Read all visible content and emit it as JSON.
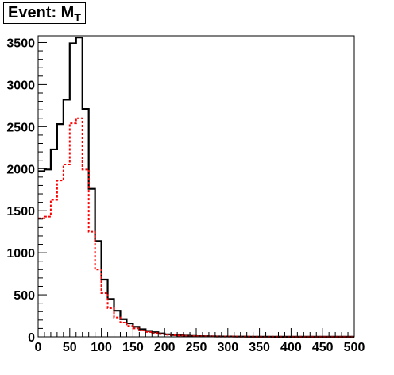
{
  "chart_data": {
    "type": "histogram",
    "title_main": "Event: M",
    "title_sub": "T",
    "xlabel": "",
    "ylabel": "",
    "xlim": [
      0,
      500
    ],
    "ylim": [
      0,
      3580
    ],
    "bin_width": 10,
    "x_ticks": [
      0,
      50,
      100,
      150,
      200,
      250,
      300,
      350,
      400,
      450,
      500
    ],
    "y_ticks": [
      0,
      500,
      1000,
      1500,
      2000,
      2500,
      3000,
      3500
    ],
    "grid": false,
    "legend": "none",
    "series": [
      {
        "style": "solid",
        "color": "#000000",
        "values": [
          1970,
          1990,
          2230,
          2530,
          2820,
          3490,
          3560,
          2710,
          1760,
          1140,
          680,
          450,
          310,
          210,
          160,
          120,
          90,
          70,
          55,
          40,
          30,
          22,
          18,
          14,
          11,
          9,
          7,
          6,
          5,
          4,
          4,
          3,
          3,
          2,
          2,
          2,
          2,
          1,
          1,
          1,
          1,
          1,
          1,
          1,
          1,
          1,
          1,
          1,
          1,
          1
        ]
      },
      {
        "style": "dashed",
        "color": "#ff0000",
        "values": [
          1410,
          1430,
          1630,
          1860,
          2050,
          2540,
          2600,
          1990,
          1250,
          800,
          520,
          340,
          230,
          170,
          130,
          100,
          75,
          58,
          45,
          33,
          25,
          19,
          15,
          12,
          9,
          7,
          6,
          5,
          4,
          3,
          3,
          2,
          2,
          2,
          1,
          1,
          1,
          1,
          1,
          1,
          1,
          1,
          1,
          1,
          1,
          1,
          1,
          1,
          1,
          1
        ]
      }
    ]
  }
}
